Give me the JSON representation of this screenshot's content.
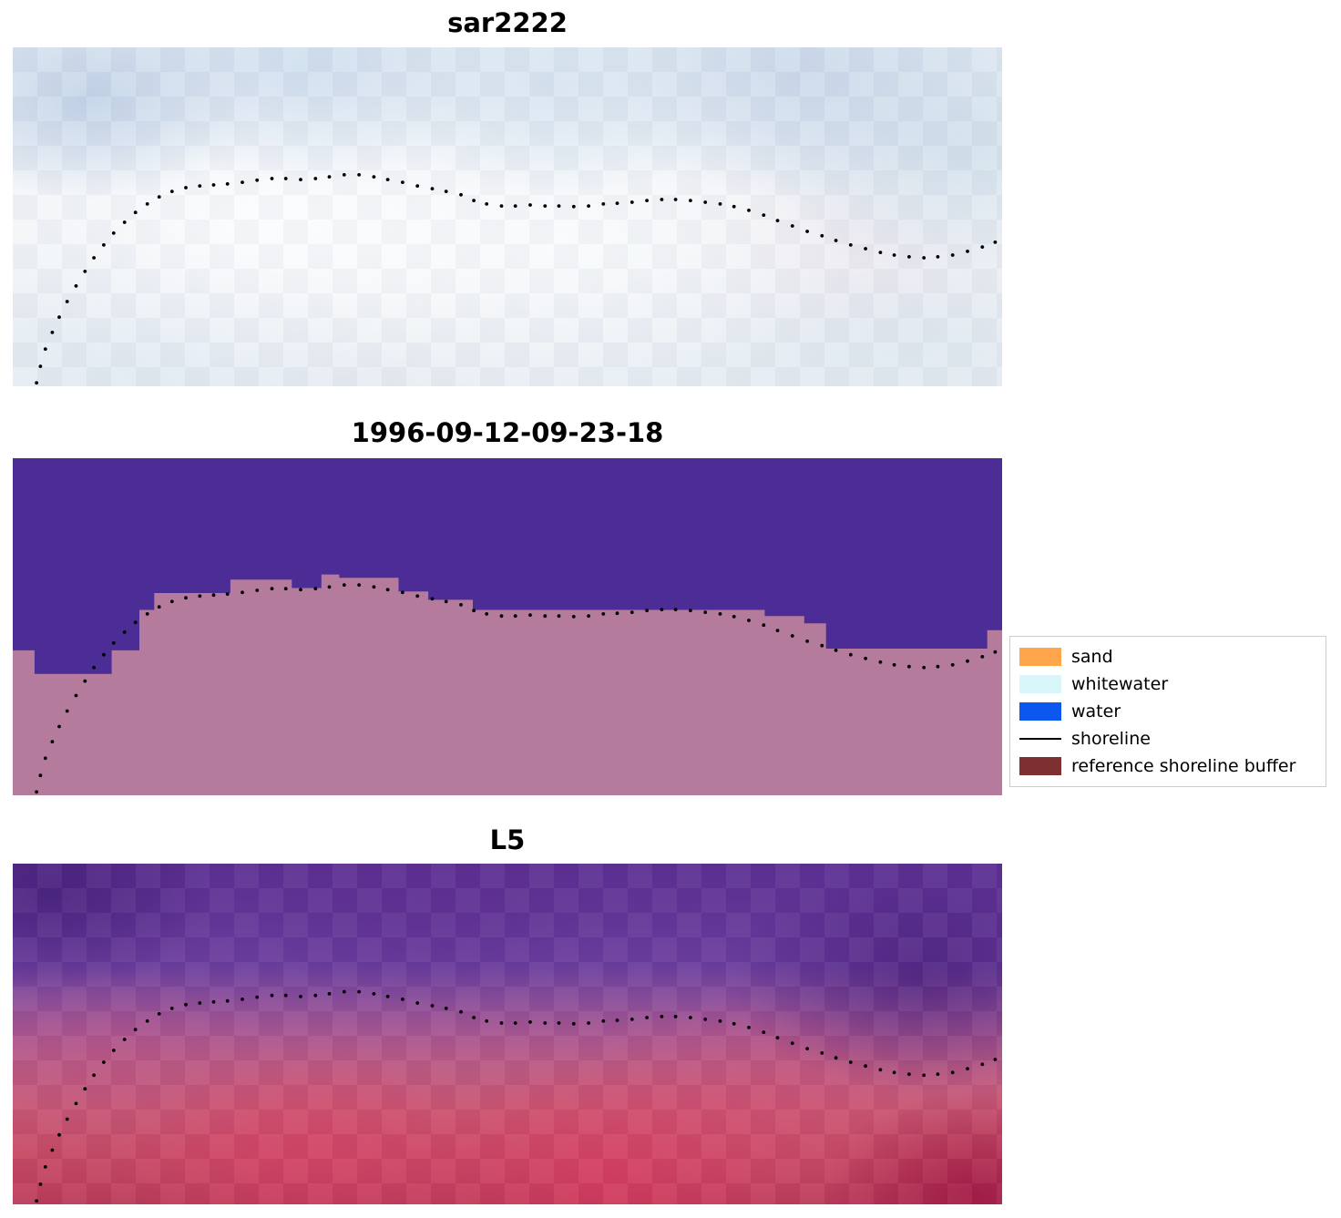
{
  "figure": {
    "background": "#ffffff",
    "panels": [
      {
        "id": "sar2222",
        "title": "sar2222"
      },
      {
        "id": "classification",
        "title": "1996-09-12-09-23-18"
      },
      {
        "id": "l5",
        "title": "L5"
      }
    ]
  },
  "legend": {
    "items": [
      {
        "label": "sand",
        "type": "swatch",
        "color": "#ffa64d"
      },
      {
        "label": "whitewater",
        "type": "swatch",
        "color": "#d9f6fa"
      },
      {
        "label": "water",
        "type": "swatch",
        "color": "#0b57f0"
      },
      {
        "label": "shoreline",
        "type": "line",
        "color": "#000000"
      },
      {
        "label": "reference shoreline buffer",
        "type": "swatch",
        "color": "#7e2f2f"
      }
    ]
  },
  "chart_data": {
    "type": "scatter",
    "title": "",
    "panel_titles": [
      "sar2222",
      "1996-09-12-09-23-18",
      "L5"
    ],
    "legend_position": "right of middle panel",
    "shoreline": {
      "marker": "dot",
      "color": "#000000",
      "dot_radius_px": 1.9,
      "points_normalized": [
        [
          0.024,
          0.99
        ],
        [
          0.028,
          0.941
        ],
        [
          0.033,
          0.89
        ],
        [
          0.04,
          0.841
        ],
        [
          0.047,
          0.796
        ],
        [
          0.055,
          0.75
        ],
        [
          0.064,
          0.704
        ],
        [
          0.073,
          0.661
        ],
        [
          0.082,
          0.621
        ],
        [
          0.092,
          0.583
        ],
        [
          0.102,
          0.548
        ],
        [
          0.113,
          0.516
        ],
        [
          0.124,
          0.487
        ],
        [
          0.136,
          0.462
        ],
        [
          0.148,
          0.441
        ],
        [
          0.161,
          0.425
        ],
        [
          0.175,
          0.414
        ],
        [
          0.189,
          0.409
        ],
        [
          0.203,
          0.406
        ],
        [
          0.217,
          0.403
        ],
        [
          0.232,
          0.398
        ],
        [
          0.247,
          0.392
        ],
        [
          0.262,
          0.387
        ],
        [
          0.276,
          0.387
        ],
        [
          0.291,
          0.39
        ],
        [
          0.306,
          0.387
        ],
        [
          0.32,
          0.382
        ],
        [
          0.335,
          0.376
        ],
        [
          0.35,
          0.376
        ],
        [
          0.365,
          0.382
        ],
        [
          0.379,
          0.39
        ],
        [
          0.394,
          0.398
        ],
        [
          0.409,
          0.409
        ],
        [
          0.424,
          0.417
        ],
        [
          0.438,
          0.425
        ],
        [
          0.453,
          0.435
        ],
        [
          0.466,
          0.452
        ],
        [
          0.479,
          0.462
        ],
        [
          0.494,
          0.468
        ],
        [
          0.508,
          0.468
        ],
        [
          0.523,
          0.465
        ],
        [
          0.538,
          0.468
        ],
        [
          0.552,
          0.468
        ],
        [
          0.567,
          0.47
        ],
        [
          0.582,
          0.468
        ],
        [
          0.597,
          0.462
        ],
        [
          0.611,
          0.46
        ],
        [
          0.626,
          0.457
        ],
        [
          0.641,
          0.452
        ],
        [
          0.656,
          0.449
        ],
        [
          0.67,
          0.449
        ],
        [
          0.685,
          0.452
        ],
        [
          0.7,
          0.457
        ],
        [
          0.715,
          0.462
        ],
        [
          0.729,
          0.47
        ],
        [
          0.744,
          0.481
        ],
        [
          0.759,
          0.495
        ],
        [
          0.773,
          0.511
        ],
        [
          0.788,
          0.527
        ],
        [
          0.803,
          0.543
        ],
        [
          0.818,
          0.556
        ],
        [
          0.832,
          0.57
        ],
        [
          0.847,
          0.583
        ],
        [
          0.862,
          0.594
        ],
        [
          0.877,
          0.605
        ],
        [
          0.891,
          0.613
        ],
        [
          0.906,
          0.618
        ],
        [
          0.921,
          0.621
        ],
        [
          0.935,
          0.618
        ],
        [
          0.95,
          0.613
        ],
        [
          0.965,
          0.602
        ],
        [
          0.98,
          0.589
        ],
        [
          0.993,
          0.575
        ]
      ]
    },
    "classification": {
      "water_color": "#4c2d96",
      "land_color": "#b47b9c",
      "land_steps_normalized": [
        [
          0.0,
          0.022,
          0.57
        ],
        [
          0.022,
          0.1,
          0.64
        ],
        [
          0.1,
          0.128,
          0.57
        ],
        [
          0.128,
          0.143,
          0.45
        ],
        [
          0.143,
          0.22,
          0.4
        ],
        [
          0.22,
          0.282,
          0.36
        ],
        [
          0.282,
          0.312,
          0.385
        ],
        [
          0.312,
          0.33,
          0.345
        ],
        [
          0.33,
          0.39,
          0.355
        ],
        [
          0.39,
          0.42,
          0.395
        ],
        [
          0.42,
          0.465,
          0.42
        ],
        [
          0.465,
          0.76,
          0.45
        ],
        [
          0.76,
          0.8,
          0.468
        ],
        [
          0.8,
          0.822,
          0.49
        ],
        [
          0.822,
          0.985,
          0.565
        ],
        [
          0.985,
          1.0,
          0.51
        ]
      ]
    }
  }
}
